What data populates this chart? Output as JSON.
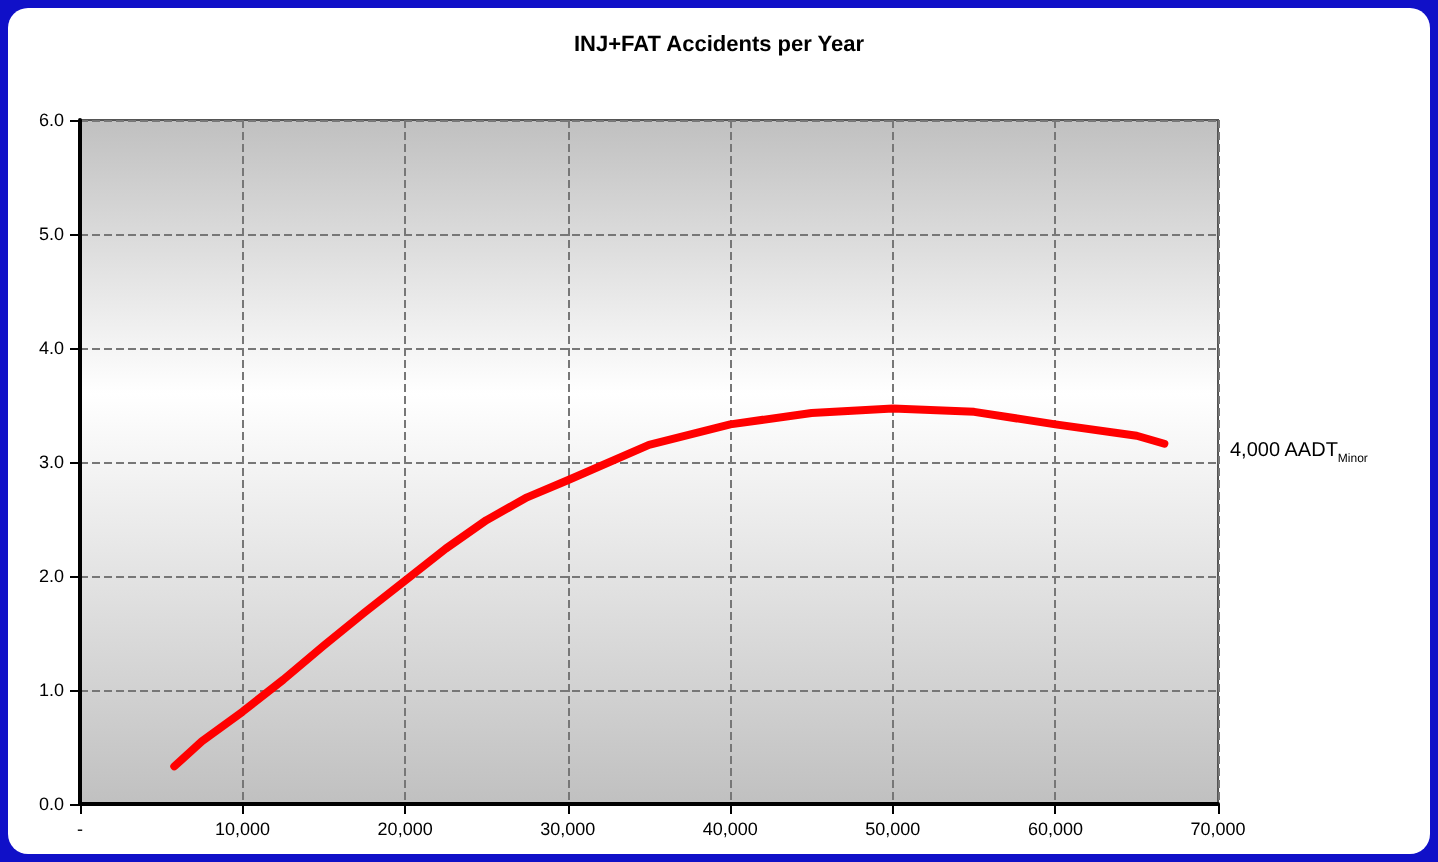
{
  "chart_data": {
    "type": "line",
    "title": "INJ+FAT Accidents per Year",
    "xlim": [
      0,
      70000
    ],
    "xticks": [
      {
        "value": 0,
        "label": "-"
      },
      {
        "value": 10000,
        "label": "10,000"
      },
      {
        "value": 20000,
        "label": "20,000"
      },
      {
        "value": 30000,
        "label": "30,000"
      },
      {
        "value": 40000,
        "label": "40,000"
      },
      {
        "value": 50000,
        "label": "50,000"
      },
      {
        "value": 60000,
        "label": "60,000"
      },
      {
        "value": 70000,
        "label": "70,000"
      }
    ],
    "ylim": [
      0,
      6
    ],
    "yticks": [
      {
        "value": 0,
        "label": "0.0"
      },
      {
        "value": 1,
        "label": "1.0"
      },
      {
        "value": 2,
        "label": "2.0"
      },
      {
        "value": 3,
        "label": "3.0"
      },
      {
        "value": 4,
        "label": "4.0"
      },
      {
        "value": 5,
        "label": "5.0"
      },
      {
        "value": 6,
        "label": "6.0"
      }
    ],
    "grid": true,
    "legend": false,
    "marker": "none",
    "line_style": "solid",
    "series": [
      {
        "name": "4,000 AADT$_{Minor}$",
        "color": "#ff0000",
        "x": [
          5800,
          7500,
          10000,
          12500,
          15000,
          17500,
          20000,
          22500,
          25000,
          27500,
          30000,
          35000,
          40000,
          45000,
          50000,
          55000,
          60000,
          65000,
          66700
        ],
        "values": [
          0.33,
          0.55,
          0.81,
          1.09,
          1.39,
          1.68,
          1.96,
          2.24,
          2.49,
          2.69,
          2.84,
          3.15,
          3.33,
          3.43,
          3.47,
          3.44,
          3.33,
          3.23,
          3.16
        ]
      }
    ]
  }
}
